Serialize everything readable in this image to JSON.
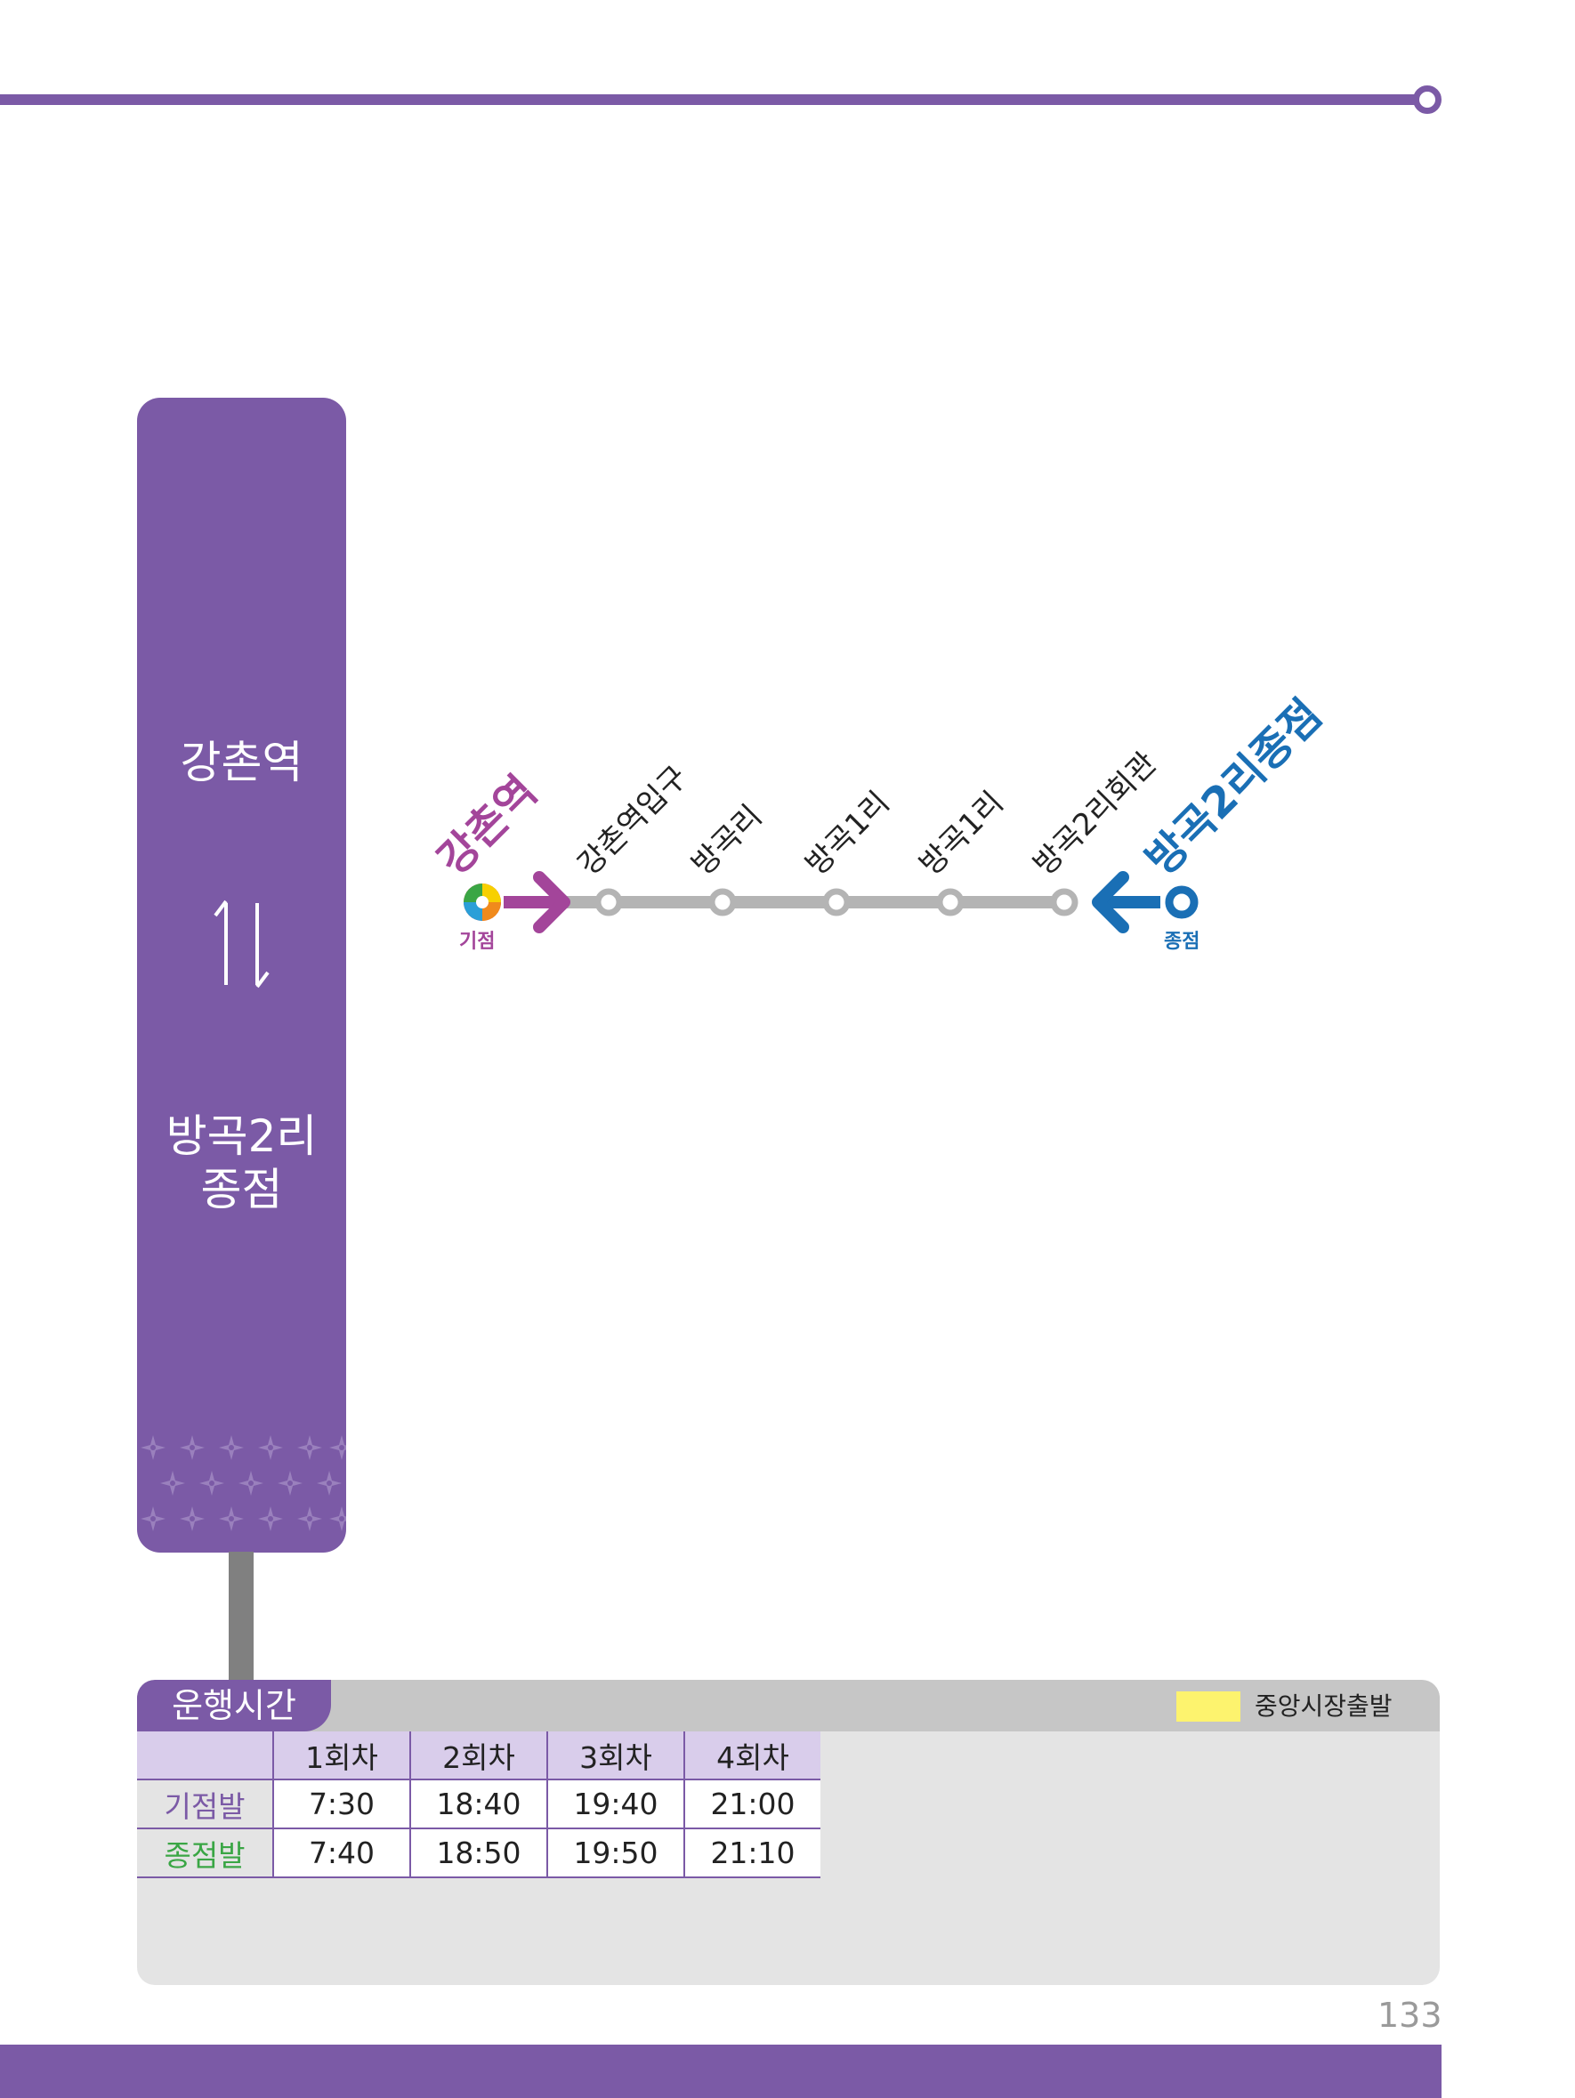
{
  "route": {
    "from": "강촌역",
    "to_line1": "방곡2리",
    "to_line2": "종점"
  },
  "diagram": {
    "origin_label": "강촌역",
    "origin_tag": "기점",
    "terminus_label": "방곡2리종점",
    "terminus_tag": "종점",
    "stops": [
      "강촌역입구",
      "방곡리",
      "방곡1리",
      "방곡1리",
      "방곡2리회관"
    ]
  },
  "schedule": {
    "title": "운행시간",
    "legend": "중앙시장출발",
    "columns": [
      "1회차",
      "2회차",
      "3회차",
      "4회차"
    ],
    "rows": [
      {
        "label": "기점발",
        "times": [
          "7:30",
          "18:40",
          "19:40",
          "21:00"
        ]
      },
      {
        "label": "종점발",
        "times": [
          "7:40",
          "18:50",
          "19:50",
          "21:10"
        ]
      }
    ]
  },
  "page_number": "133",
  "colors": {
    "brand_purple": "#7b5aa6",
    "origin_magenta": "#a3459a",
    "terminus_blue": "#1a6fb5",
    "line_gray": "#b4b4b4",
    "legend_yellow": "#fdf36e"
  }
}
